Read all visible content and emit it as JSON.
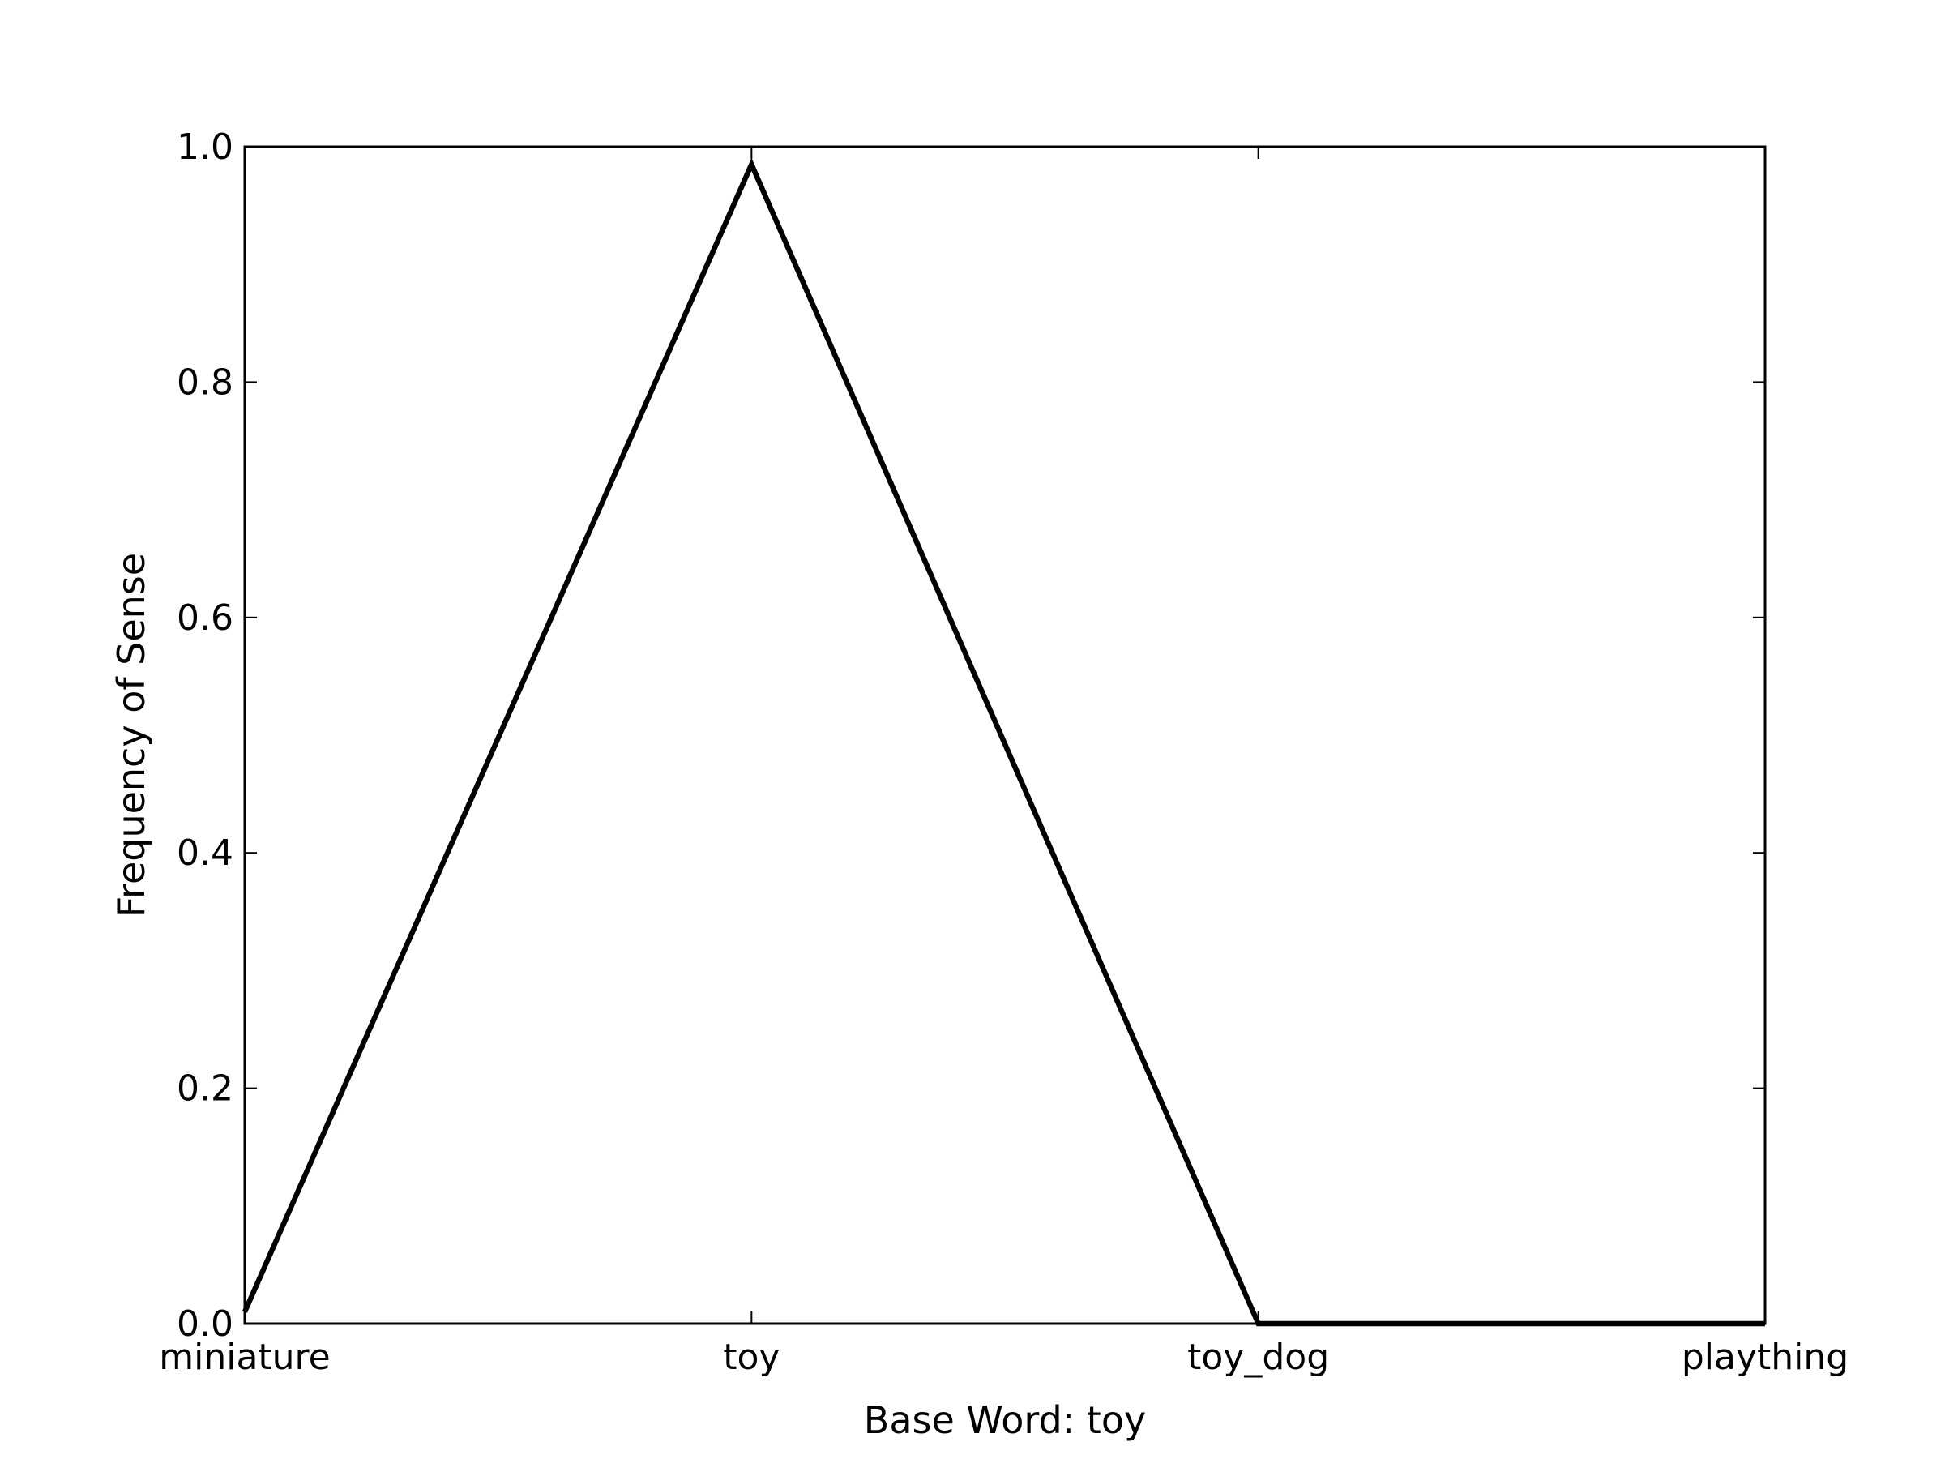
{
  "chart_data": {
    "type": "line",
    "title": "",
    "xlabel": "Base Word: toy",
    "ylabel": "Frequency of Sense",
    "categories": [
      "miniature",
      "toy",
      "toy_dog",
      "plaything"
    ],
    "series": [
      {
        "values": [
          0.01,
          0.985,
          0.0,
          0.0
        ],
        "color": "#000000"
      }
    ],
    "ylim": [
      0,
      1.0
    ],
    "yticks": [
      "0.0",
      "0.2",
      "0.4",
      "0.6",
      "0.8",
      "1.0"
    ],
    "grid": false,
    "legend": "none"
  }
}
